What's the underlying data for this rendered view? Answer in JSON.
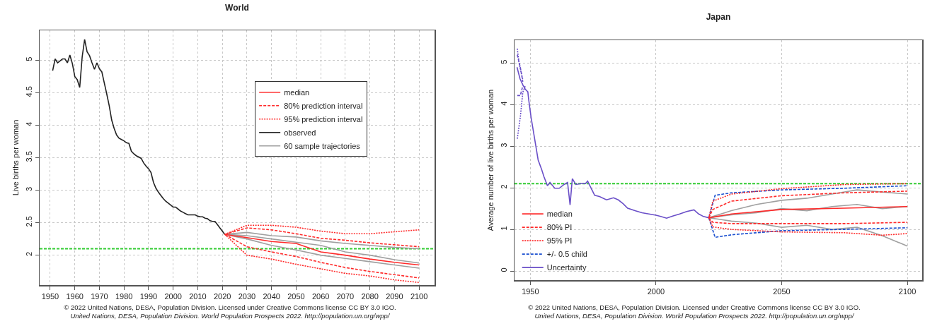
{
  "chart_data": [
    {
      "type": "line",
      "title": "World",
      "ylabel": "Live births per woman",
      "xlim": [
        1945.7,
        2106.3
      ],
      "ylim": [
        1.54,
        5.46
      ],
      "xticks": [
        1950,
        1960,
        1970,
        1980,
        1990,
        2000,
        2010,
        2020,
        2030,
        2040,
        2050,
        2060,
        2070,
        2080,
        2090,
        2100
      ],
      "yticks": [
        2,
        2.5,
        3,
        3.5,
        4,
        4.5,
        5
      ],
      "grid": true,
      "legend": "right",
      "ref_lines": [
        {
          "axis": "y",
          "value": 2.1,
          "color": "#33cc33",
          "line_style": "dashed"
        }
      ],
      "series": [
        {
          "name": "median",
          "color": "#ff2a2a",
          "line_style": "solid",
          "x": [
            2021,
            2030,
            2040,
            2050,
            2060,
            2070,
            2080,
            2090,
            2100
          ],
          "values": [
            2.32,
            2.27,
            2.21,
            2.18,
            2.05,
            2.0,
            1.94,
            1.89,
            1.85
          ]
        },
        {
          "name": "80% prediction interval",
          "color": "#ff2a2a",
          "line_style": "dashed",
          "x": [
            2021,
            2030,
            2040,
            2050,
            2060,
            2070,
            2080,
            2090,
            2100
          ],
          "values": [
            2.32,
            2.42,
            2.39,
            2.33,
            2.26,
            2.23,
            2.19,
            2.16,
            2.13
          ]
        },
        {
          "color": "#ff2a2a",
          "line_style": "dashed",
          "x": [
            2021,
            2030,
            2040,
            2050,
            2060,
            2070,
            2080,
            2090,
            2100
          ],
          "values": [
            2.32,
            2.13,
            2.05,
            1.98,
            1.89,
            1.81,
            1.75,
            1.7,
            1.65
          ]
        },
        {
          "name": "95% prediction interval",
          "color": "#ff2a2a",
          "line_style": "dotted",
          "x": [
            2021,
            2030,
            2040,
            2050,
            2060,
            2070,
            2080,
            2090,
            2100
          ],
          "values": [
            2.32,
            2.46,
            2.46,
            2.43,
            2.37,
            2.33,
            2.33,
            2.36,
            2.39
          ]
        },
        {
          "color": "#ff2a2a",
          "line_style": "dotted",
          "x": [
            2021,
            2030,
            2040,
            2050,
            2060,
            2070,
            2080,
            2090,
            2100
          ],
          "values": [
            2.32,
            2.0,
            1.94,
            1.86,
            1.79,
            1.72,
            1.68,
            1.62,
            1.58
          ]
        },
        {
          "name": "observed",
          "color": "#222222",
          "line_style": "solid",
          "x": [
            1951,
            1952,
            1953,
            1955,
            1956,
            1957,
            1958,
            1959,
            1960,
            1961,
            1962,
            1963,
            1964,
            1965,
            1966,
            1967,
            1968,
            1969,
            1970,
            1971,
            1972,
            1973,
            1974,
            1975,
            1976,
            1977,
            1978,
            1979,
            1980,
            1981,
            1982,
            1983,
            1984,
            1985,
            1986,
            1987,
            1988,
            1989,
            1990,
            1991,
            1992,
            1993,
            1994,
            1995,
            1996,
            1997,
            1998,
            1999,
            2000,
            2001,
            2002,
            2003,
            2004,
            2005,
            2006,
            2007,
            2008,
            2009,
            2010,
            2011,
            2012,
            2013,
            2014,
            2015,
            2016,
            2017,
            2018,
            2019,
            2020,
            2021
          ],
          "values": [
            4.84,
            5.02,
            4.96,
            5.02,
            5.02,
            4.96,
            5.08,
            4.95,
            4.75,
            4.7,
            4.58,
            5.05,
            5.32,
            5.13,
            5.07,
            4.96,
            4.86,
            4.96,
            4.87,
            4.82,
            4.65,
            4.48,
            4.3,
            4.08,
            3.95,
            3.85,
            3.8,
            3.78,
            3.76,
            3.73,
            3.72,
            3.6,
            3.56,
            3.53,
            3.51,
            3.49,
            3.42,
            3.37,
            3.33,
            3.27,
            3.12,
            3.03,
            2.97,
            2.92,
            2.87,
            2.83,
            2.8,
            2.77,
            2.74,
            2.74,
            2.71,
            2.68,
            2.66,
            2.64,
            2.62,
            2.62,
            2.62,
            2.62,
            2.6,
            2.59,
            2.59,
            2.57,
            2.56,
            2.53,
            2.52,
            2.52,
            2.47,
            2.42,
            2.37,
            2.32
          ]
        },
        {
          "name": "60 sample trajectories",
          "color": "#a0a0a0",
          "line_style": "solid",
          "x": [
            2021,
            2030,
            2040,
            2050,
            2060,
            2070,
            2080,
            2090,
            2100
          ],
          "values": [
            2.32,
            2.3,
            2.25,
            2.2,
            2.15,
            2.05,
            2.0,
            1.93,
            1.88
          ]
        },
        {
          "color": "#a0a0a0",
          "line_style": "solid",
          "x": [
            2021,
            2030,
            2040,
            2050,
            2060,
            2070,
            2080,
            2090,
            2100
          ],
          "values": [
            2.32,
            2.25,
            2.15,
            2.08,
            2.0,
            1.95,
            1.9,
            1.85,
            1.8
          ]
        },
        {
          "color": "#a0a0a0",
          "line_style": "solid",
          "x": [
            2021,
            2030,
            2040,
            2050,
            2060,
            2070,
            2080,
            2090,
            2100
          ],
          "values": [
            2.32,
            2.35,
            2.3,
            2.28,
            2.22,
            2.18,
            2.15,
            2.12,
            2.1
          ]
        }
      ],
      "annotations": [
        "© 2022 United Nations, DESA, Population Division. Licensed under Creative Commons license CC BY 3.0 IGO.",
        "United Nations, DESA, Population Division. World Population Prospects 2022. http://population.un.org/wpp/"
      ]
    },
    {
      "type": "line",
      "title": "Japan",
      "ylabel": "Average number of live births per woman",
      "xlim": [
        1943.7,
        2105.9
      ],
      "ylim": [
        -0.22,
        5.55
      ],
      "xticks": [
        1950,
        2000,
        2050,
        2100
      ],
      "yticks": [
        0,
        1,
        2,
        3,
        4,
        5
      ],
      "grid": true,
      "legend": "bottom left",
      "ref_lines": [
        {
          "axis": "y",
          "value": 2.1,
          "color": "#33cc33",
          "line_style": "dashed"
        }
      ],
      "series": [
        {
          "name": "median",
          "color": "#ff2a2a",
          "line_style": "solid",
          "x": [
            2021,
            2030,
            2050,
            2075,
            2100
          ],
          "values": [
            1.28,
            1.37,
            1.48,
            1.51,
            1.55
          ]
        },
        {
          "name": "80% PI",
          "color": "#ff2a2a",
          "line_style": "dashed",
          "x": [
            2021,
            2022.6,
            2030,
            2050,
            2075,
            2100
          ],
          "values": [
            1.28,
            1.48,
            1.68,
            1.81,
            1.88,
            1.92
          ]
        },
        {
          "color": "#ff2a2a",
          "line_style": "dashed",
          "x": [
            2021,
            2022.6,
            2030,
            2050,
            2075,
            2100
          ],
          "values": [
            1.28,
            1.17,
            1.14,
            1.14,
            1.14,
            1.17
          ]
        },
        {
          "name": "95% PI",
          "color": "#ff2a2a",
          "line_style": "dotted",
          "x": [
            2021,
            2022.6,
            2030,
            2050,
            2075,
            2100
          ],
          "values": [
            1.28,
            1.68,
            1.85,
            1.98,
            2.08,
            2.1
          ]
        },
        {
          "color": "#ff2a2a",
          "line_style": "dotted",
          "x": [
            2021,
            2022.6,
            2030,
            2050,
            2075,
            2090,
            2100
          ],
          "values": [
            1.28,
            1.06,
            1.0,
            0.94,
            0.92,
            0.86,
            0.9
          ]
        },
        {
          "name": "+/- 0.5 child",
          "color": "#1a4fd0",
          "line_style": "dashed",
          "x": [
            2021,
            2023.5,
            2030,
            2050,
            2075,
            2100
          ],
          "values": [
            1.28,
            1.82,
            1.88,
            1.95,
            1.99,
            2.05
          ]
        },
        {
          "color": "#1a4fd0",
          "line_style": "dashed",
          "x": [
            2021,
            2023.5,
            2030,
            2050,
            2075,
            2100
          ],
          "values": [
            1.28,
            0.81,
            0.87,
            0.97,
            1.0,
            1.04
          ]
        },
        {
          "name": "Uncertainty",
          "color": "#6a4fc8",
          "line_style": "solid",
          "x": [
            1944.7,
            1945.9,
            1947,
            1948,
            1949,
            1949.3,
            1950.3,
            1951.7,
            1953.1,
            1954.5,
            1955.4,
            1956.8,
            1957.8,
            1959.7,
            1961.5,
            1963.4,
            1964.8,
            1965.8,
            1966.7,
            1968.1,
            1970,
            1971.9,
            1972.8,
            1974.2,
            1975.6,
            1977.5,
            1980.3,
            1983.1,
            1985,
            1986.9,
            1988.7,
            1991.6,
            1994.4,
            1997.2,
            2000,
            2001.9,
            2004.2,
            2006.6,
            2009.4,
            2012.2,
            2015.1,
            2017,
            2018.9,
            2021
          ],
          "values": [
            4.9,
            4.62,
            4.48,
            4.37,
            4.31,
            4.14,
            3.69,
            3.18,
            2.67,
            2.44,
            2.27,
            2.05,
            2.13,
            1.99,
            1.99,
            2.08,
            2.13,
            1.59,
            2.22,
            2.08,
            2.1,
            2.1,
            2.16,
            1.99,
            1.82,
            1.79,
            1.71,
            1.76,
            1.71,
            1.62,
            1.51,
            1.45,
            1.4,
            1.37,
            1.34,
            1.31,
            1.27,
            1.32,
            1.37,
            1.43,
            1.47,
            1.37,
            1.31,
            1.28
          ]
        },
        {
          "color": "#6a4fc8",
          "line_style": "dotted",
          "x": [
            1944.8,
            1946,
            1947,
            1948
          ],
          "values": [
            3.18,
            3.7,
            4.3,
            4.45
          ]
        },
        {
          "color": "#6a4fc8",
          "line_style": "dotted",
          "x": [
            1944.8,
            1945.5,
            1947
          ],
          "values": [
            5.35,
            5.0,
            4.6
          ]
        },
        {
          "color": "#6a4fc8",
          "line_style": "dashed",
          "x": [
            1944.8,
            1946,
            1947
          ],
          "values": [
            4.22,
            4.22,
            4.45
          ]
        },
        {
          "color": "#6a4fc8",
          "line_style": "dashed",
          "x": [
            1944.8,
            1946,
            1947
          ],
          "values": [
            5.2,
            4.9,
            4.55
          ]
        },
        {
          "color": "#a0a0a0",
          "line_style": "solid",
          "x": [
            2021,
            2030,
            2040,
            2050,
            2060,
            2070,
            2080,
            2090,
            2100
          ],
          "values": [
            1.28,
            1.45,
            1.6,
            1.7,
            1.75,
            1.85,
            1.95,
            1.9,
            1.85
          ]
        },
        {
          "color": "#a0a0a0",
          "line_style": "solid",
          "x": [
            2021,
            2030,
            2040,
            2050,
            2060,
            2070,
            2080,
            2090,
            2100
          ],
          "values": [
            1.28,
            1.2,
            1.15,
            1.05,
            1.1,
            1.0,
            1.05,
            0.85,
            0.6
          ]
        },
        {
          "color": "#a0a0a0",
          "line_style": "solid",
          "x": [
            2021,
            2030,
            2040,
            2050,
            2060,
            2070,
            2080,
            2090,
            2100
          ],
          "values": [
            1.28,
            1.35,
            1.4,
            1.5,
            1.45,
            1.55,
            1.6,
            1.5,
            1.55
          ]
        }
      ],
      "annotations": [
        "© 2022 United Nations, DESA, Population Division. Licensed under Creative Commons license CC BY 3.0 IGO.",
        "United Nations, DESA, Population Division. World Population Prospects 2022. http://population.un.org/wpp/"
      ]
    }
  ]
}
